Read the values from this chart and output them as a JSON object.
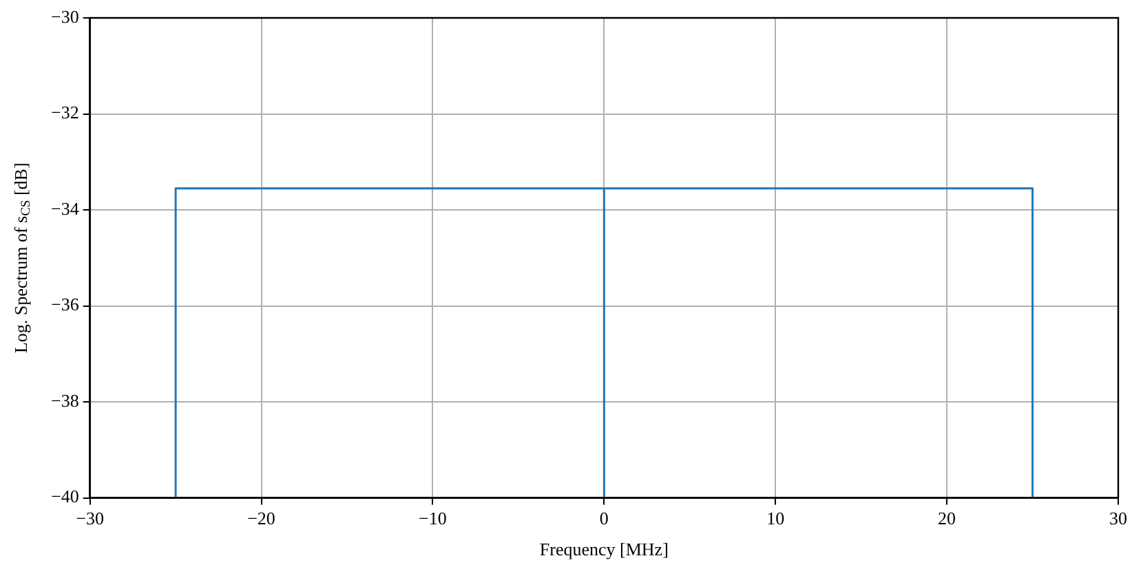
{
  "chart_data": {
    "type": "line",
    "xlabel": "Frequency [MHz]",
    "ylabel": "Log. Spectrum of s$_{CS}$ [dB]",
    "series": [
      {
        "color": "#1f77b4",
        "x": [
          -25,
          -25,
          0,
          0,
          0,
          25,
          25
        ],
        "values": [
          -40,
          -33.55,
          -33.55,
          -40,
          -33.55,
          -33.55,
          -40
        ]
      }
    ],
    "xlim": [
      -30,
      30
    ],
    "xticks": [
      -30,
      -20,
      -10,
      0,
      10,
      20,
      30
    ],
    "ylim": [
      -40,
      -30
    ],
    "yticks": [
      -40,
      -38,
      -36,
      -34,
      -32,
      -30
    ],
    "grid": true,
    "legend": false,
    "marker": "none",
    "line_style": "solid"
  }
}
